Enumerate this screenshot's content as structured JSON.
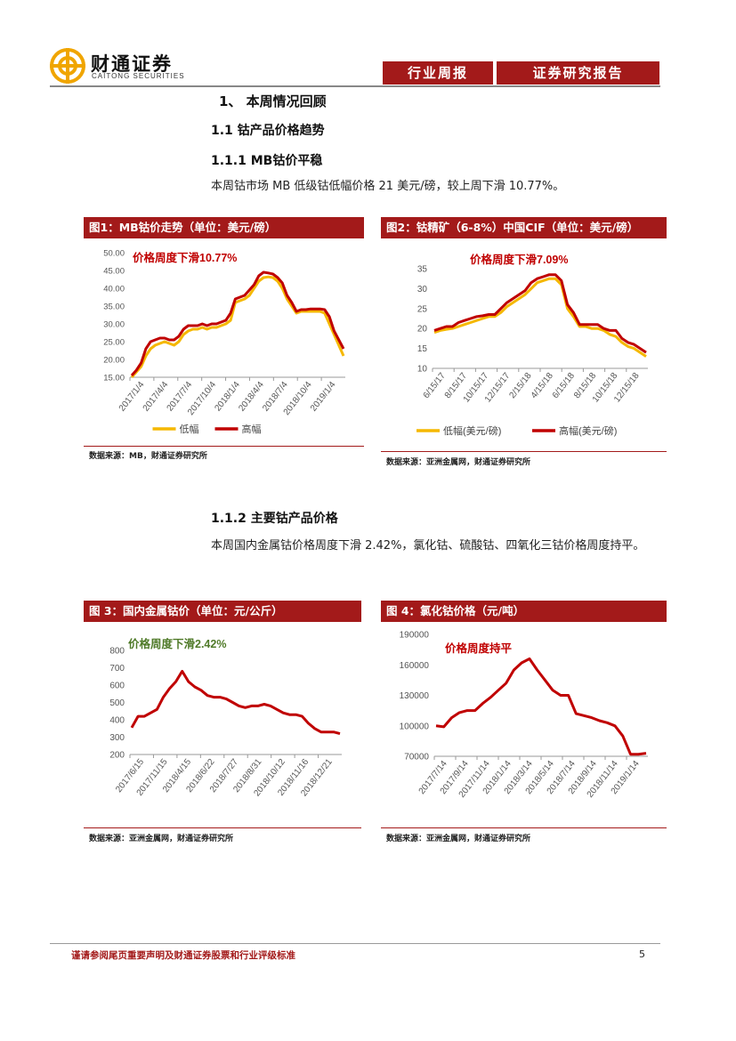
{
  "header": {
    "logo_cn": "财通证券",
    "logo_en": "CAITONG SECURITIES",
    "tag_left": "行业周报",
    "tag_right": "证券研究报告"
  },
  "sections": {
    "h1": "1、 本周情况回顾",
    "h1_1": "1.1  钴产品价格趋势",
    "h1_1_1": "1.1.1  MB钴价平稳",
    "p1": "本周钴市场 MB 低级钴低幅价格 21 美元/磅，较上周下滑 10.77%。",
    "h1_1_2": "1.1.2  主要钴产品价格",
    "p2": "本周国内金属钴价格周度下滑 2.42%，氯化钴、硫酸钴、四氧化三钴价格周度持平。"
  },
  "figures": [
    {
      "title": "图1：MB钴价走势（单位：美元/磅）",
      "source": "数据来源：MB，财通证券研究所"
    },
    {
      "title": "图2：钴精矿（6-8%）中国CIF（单位：美元/磅）",
      "source": "数据来源：亚洲金属网，财通证券研究所"
    },
    {
      "title": "图 3：国内金属钴价（单位：元/公斤）",
      "source": "数据来源：亚洲金属网，财通证券研究所"
    },
    {
      "title": "图 4：氯化钴价格（元/吨）",
      "source": "数据来源：亚洲金属网，财通证券研究所"
    }
  ],
  "chart_data": [
    {
      "type": "line",
      "title": "图1：MB钴价走势（单位：美元/磅）",
      "annotation": "价格周度下滑10.77%",
      "ylim": [
        15,
        50
      ],
      "yticks": [
        "15.00",
        "20.00",
        "25.00",
        "30.00",
        "35.00",
        "40.00",
        "45.00",
        "50.00"
      ],
      "x_ticks": [
        "2017/1/4",
        "2017/4/4",
        "2017/7/4",
        "2017/10/4",
        "2018/1/4",
        "2018/4/4",
        "2018/7/4",
        "2018/10/4",
        "2019/1/4"
      ],
      "legend": [
        "低幅",
        "高幅"
      ],
      "series": [
        {
          "name": "低幅",
          "color": "#f5b800",
          "values": [
            15,
            16.5,
            18,
            21,
            23,
            24,
            24.5,
            25,
            24.5,
            24,
            25,
            27,
            28,
            28.5,
            28.5,
            29,
            28.5,
            29,
            29,
            29.5,
            30,
            31,
            36,
            36.5,
            37,
            38,
            40,
            42,
            43,
            43.2,
            43,
            42,
            40,
            37,
            35,
            33,
            33.5,
            33.5,
            33.5,
            33.5,
            33.5,
            33,
            30,
            27,
            24,
            21
          ]
        },
        {
          "name": "高幅",
          "color": "#c00000",
          "values": [
            15.5,
            17,
            19,
            23,
            25,
            25.5,
            26,
            26,
            25.5,
            25.5,
            26.5,
            28.5,
            29.5,
            29.5,
            29.5,
            30,
            29.5,
            30,
            30,
            30.5,
            31,
            33,
            37,
            37.5,
            38,
            39.5,
            41,
            43.5,
            44.5,
            44.3,
            44,
            43,
            41.5,
            38,
            36,
            33.5,
            34,
            34,
            34.2,
            34.2,
            34.2,
            34,
            32,
            28,
            25.5,
            23
          ]
        }
      ]
    },
    {
      "type": "line",
      "title": "图2：钴精矿（6-8%）中国CIF（单位：美元/磅）",
      "annotation": "价格周度下滑7.09%",
      "ylim": [
        10,
        35
      ],
      "yticks": [
        "10",
        "15",
        "20",
        "25",
        "30",
        "35"
      ],
      "x_ticks": [
        "6/15/17",
        "8/15/17",
        "10/15/17",
        "12/15/17",
        "2/15/18",
        "4/15/18",
        "6/15/18",
        "8/15/18",
        "10/15/18",
        "12/15/18"
      ],
      "legend": [
        "低幅(美元/磅)",
        "高幅(美元/磅)"
      ],
      "series": [
        {
          "name": "低幅(美元/磅)",
          "color": "#f5b800",
          "values": [
            19,
            19.5,
            19.8,
            20,
            20.5,
            21,
            21.5,
            22,
            22.5,
            23,
            23,
            24,
            25.5,
            26.5,
            27.5,
            28.5,
            30,
            31.5,
            32,
            32.5,
            32.5,
            31,
            25,
            23,
            20.5,
            20.5,
            20,
            20,
            19.5,
            18.5,
            18,
            16.5,
            15.5,
            15,
            14,
            13
          ]
        },
        {
          "name": "高幅(美元/磅)",
          "color": "#c00000",
          "values": [
            19.5,
            20,
            20.5,
            20.5,
            21.5,
            22,
            22.5,
            23,
            23.2,
            23.5,
            23.5,
            25,
            26.5,
            27.5,
            28.5,
            29.5,
            31.5,
            32.5,
            33,
            33.5,
            33.5,
            32,
            26,
            24,
            21,
            21,
            21,
            21,
            20,
            19.5,
            19.5,
            17.5,
            16.5,
            16,
            15,
            14
          ]
        }
      ]
    },
    {
      "type": "line",
      "title": "图 3：国内金属钴价（单位：元/公斤）",
      "annotation": "价格周度下滑2.42%",
      "ylim": [
        200,
        800
      ],
      "yticks": [
        "200",
        "300",
        "400",
        "500",
        "600",
        "700",
        "800"
      ],
      "x_ticks": [
        "2017/6/15",
        "2017/11/15",
        "2018/4/15",
        "2018/6/22",
        "2018/7/27",
        "2018/8/31",
        "2018/10/12",
        "2018/11/16",
        "2018/12/21"
      ],
      "series": [
        {
          "name": "国内金属钴价",
          "color": "#c00000",
          "values": [
            355,
            420,
            420,
            440,
            460,
            530,
            580,
            620,
            680,
            620,
            590,
            570,
            540,
            530,
            530,
            520,
            500,
            480,
            470,
            480,
            480,
            490,
            480,
            460,
            440,
            430,
            430,
            420,
            380,
            350,
            330,
            330,
            330,
            320
          ]
        }
      ]
    },
    {
      "type": "line",
      "title": "图 4：氯化钴价格（元/吨）",
      "annotation": "价格周度持平",
      "ylim": [
        70000,
        190000
      ],
      "yticks": [
        "70000",
        "100000",
        "130000",
        "160000",
        "190000"
      ],
      "x_ticks": [
        "2017/7/14",
        "2017/9/14",
        "2017/11/14",
        "2018/1/14",
        "2018/3/14",
        "2018/5/14",
        "2018/7/14",
        "2018/9/14",
        "2018/11/14",
        "2019/1/14"
      ],
      "series": [
        {
          "name": "氯化钴价格",
          "color": "#c00000",
          "values": [
            100000,
            99000,
            108000,
            113000,
            115000,
            115000,
            122000,
            128000,
            135000,
            142000,
            155000,
            162000,
            166000,
            155000,
            145000,
            135000,
            130000,
            130000,
            112000,
            110000,
            108000,
            105000,
            103000,
            100000,
            90000,
            72000,
            72000,
            73000
          ]
        }
      ]
    }
  ],
  "footer": {
    "disclaimer": "谨请参阅尾页重要声明及财通证券股票和行业评级标准",
    "page": "5"
  },
  "colors": {
    "brand_red": "#a31a1a",
    "line_red": "#c00000",
    "line_yellow": "#f5b800",
    "logo_gold": "#f0a500"
  }
}
